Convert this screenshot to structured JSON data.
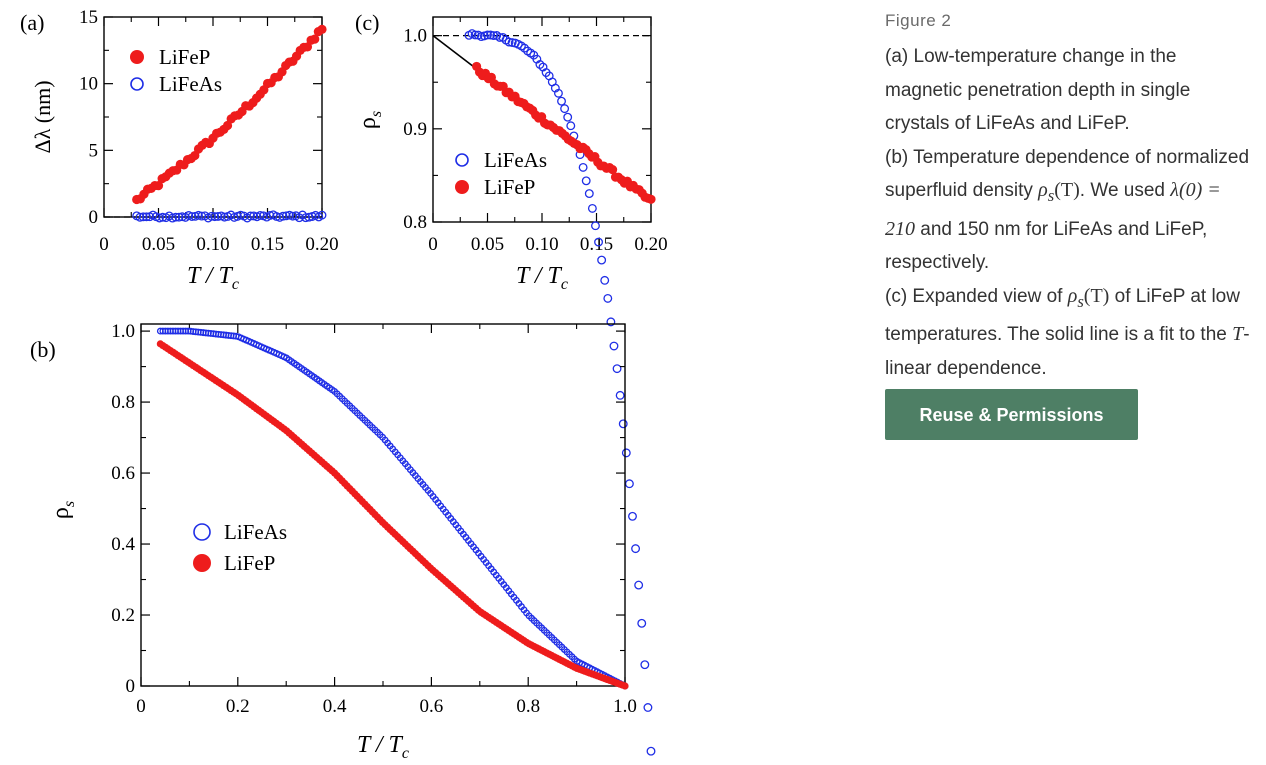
{
  "caption": {
    "figure_label": "Figure 2",
    "line_a": "(a) Low-temperature change in the magnetic penetration depth in single crystals of LiFeAs and LiFeP.",
    "line_b1": "(b) Temperature dependence of normalized superfluid density",
    "line_b_rho": "ρ",
    "line_b_sub": "s",
    "line_b_paren": "(T)",
    "line_b2": ". We used",
    "line_b_lambda": "λ(0) = 210",
    "line_b3": "and 150 nm for LiFeAs and LiFeP, respectively.",
    "line_c1": "(c) Expanded view of",
    "line_c_rho": "ρ",
    "line_c_sub": "s",
    "line_c_paren": "(T)",
    "line_c2": "of LiFeP at low temperatures. The solid line is a fit to the",
    "line_c_T": "T",
    "line_c3": "-linear dependence."
  },
  "reuse_button": "Reuse & Permissions",
  "colors": {
    "lifep": "#ee1c1c",
    "lifeas": "#1f2ee6",
    "button": "#4e7f65"
  },
  "chart_data": [
    {
      "id": "a",
      "panel_label": "(a)",
      "type": "scatter",
      "ylabel": "Δλ (nm)",
      "xlabel": "T / Tc",
      "xlim": [
        0,
        0.2
      ],
      "ylim": [
        0,
        15
      ],
      "xticks": [
        0,
        0.05,
        0.1,
        0.15,
        0.2
      ],
      "xtick_labels": [
        "0",
        "0.05",
        "0.10",
        "0.15",
        "0.20"
      ],
      "yticks": [
        0,
        5,
        10,
        15
      ],
      "ytick_labels": [
        "0",
        "5",
        "10",
        "15"
      ],
      "reference_line": {
        "y": 0,
        "style": "dashed"
      },
      "legend": {
        "placement": "top-left",
        "entries": [
          "LiFeP",
          "LiFeAs"
        ]
      },
      "series": [
        {
          "name": "LiFeP",
          "marker": "filled",
          "x_range": [
            0.03,
            0.2
          ],
          "samples": 52,
          "curve": "quad",
          "coeffs": [
            -0.5,
            55.5,
            88
          ],
          "noise": 0.22
        },
        {
          "name": "LiFeAs",
          "marker": "open",
          "x_range": [
            0.03,
            0.2
          ],
          "samples": 58,
          "curve": "power",
          "coeffs": [
            0.04,
            3.6,
            1.0,
            3.6
          ],
          "noise": 0.12
        }
      ]
    },
    {
      "id": "c",
      "panel_label": "(c)",
      "type": "scatter",
      "ylabel": "ρs",
      "xlabel": "T / Tc",
      "xlim": [
        0,
        0.2
      ],
      "ylim": [
        0.8,
        1.02
      ],
      "xticks": [
        0,
        0.05,
        0.1,
        0.15,
        0.2
      ],
      "xtick_labels": [
        "0",
        "0.05",
        "0.10",
        "0.15",
        "0.20"
      ],
      "yticks": [
        0.8,
        0.9,
        1.0
      ],
      "ytick_labels": [
        "0.8",
        "0.9",
        "1.0"
      ],
      "reference_line": {
        "y": 1.0,
        "style": "dashed"
      },
      "fit_line": {
        "x": [
          0,
          0.19
        ],
        "y": [
          1.0,
          0.83
        ]
      },
      "legend": {
        "placement": "center-left",
        "entries": [
          "LiFeAs",
          "LiFeP"
        ]
      },
      "series": [
        {
          "name": "LiFeAs",
          "marker": "open",
          "x_range": [
            0.033,
            0.2
          ],
          "samples": 60,
          "curve": "power",
          "coeffs": [
            1.0015,
            -0.034,
            0.1,
            4.5
          ],
          "noise": 0.0017
        },
        {
          "name": "LiFeP",
          "marker": "filled",
          "x_range": [
            0.04,
            0.2
          ],
          "samples": 60,
          "curve": "linear",
          "coeffs": [
            1.0,
            -0.89
          ],
          "noise": 0.003
        }
      ]
    },
    {
      "id": "b",
      "panel_label": "(b)",
      "type": "scatter",
      "ylabel": "ρs",
      "xlabel": "T / Tc",
      "xlim": [
        0,
        1.0
      ],
      "ylim": [
        0,
        1.02
      ],
      "xticks": [
        0,
        0.2,
        0.4,
        0.6,
        0.8,
        1.0
      ],
      "xtick_labels": [
        "0",
        "0.2",
        "0.4",
        "0.6",
        "0.8",
        "1.0"
      ],
      "yticks": [
        0,
        0.2,
        0.4,
        0.6,
        0.8,
        1.0
      ],
      "ytick_labels": [
        "0",
        "0.2",
        "0.4",
        "0.6",
        "0.8",
        "1.0"
      ],
      "legend": {
        "placement": "center-left",
        "entries": [
          "LiFeAs",
          "LiFeP"
        ]
      },
      "series": [
        {
          "name": "LiFeAs",
          "marker": "open",
          "x_range": [
            0.04,
            1.0
          ],
          "samples": 185,
          "curve": "points",
          "x": [
            0,
            0.1,
            0.2,
            0.3,
            0.4,
            0.5,
            0.6,
            0.7,
            0.8,
            0.9,
            1.0
          ],
          "y": [
            1.0,
            1.0,
            0.985,
            0.925,
            0.83,
            0.7,
            0.54,
            0.37,
            0.2,
            0.07,
            0.0
          ]
        },
        {
          "name": "LiFeP",
          "marker": "filled",
          "x_range": [
            0.04,
            1.0
          ],
          "samples": 185,
          "curve": "points",
          "x": [
            0.0,
            0.05,
            0.1,
            0.2,
            0.3,
            0.4,
            0.5,
            0.6,
            0.7,
            0.8,
            0.9,
            1.0
          ],
          "y": [
            1.0,
            0.955,
            0.91,
            0.82,
            0.72,
            0.6,
            0.46,
            0.33,
            0.21,
            0.12,
            0.05,
            0.0
          ]
        }
      ]
    }
  ]
}
